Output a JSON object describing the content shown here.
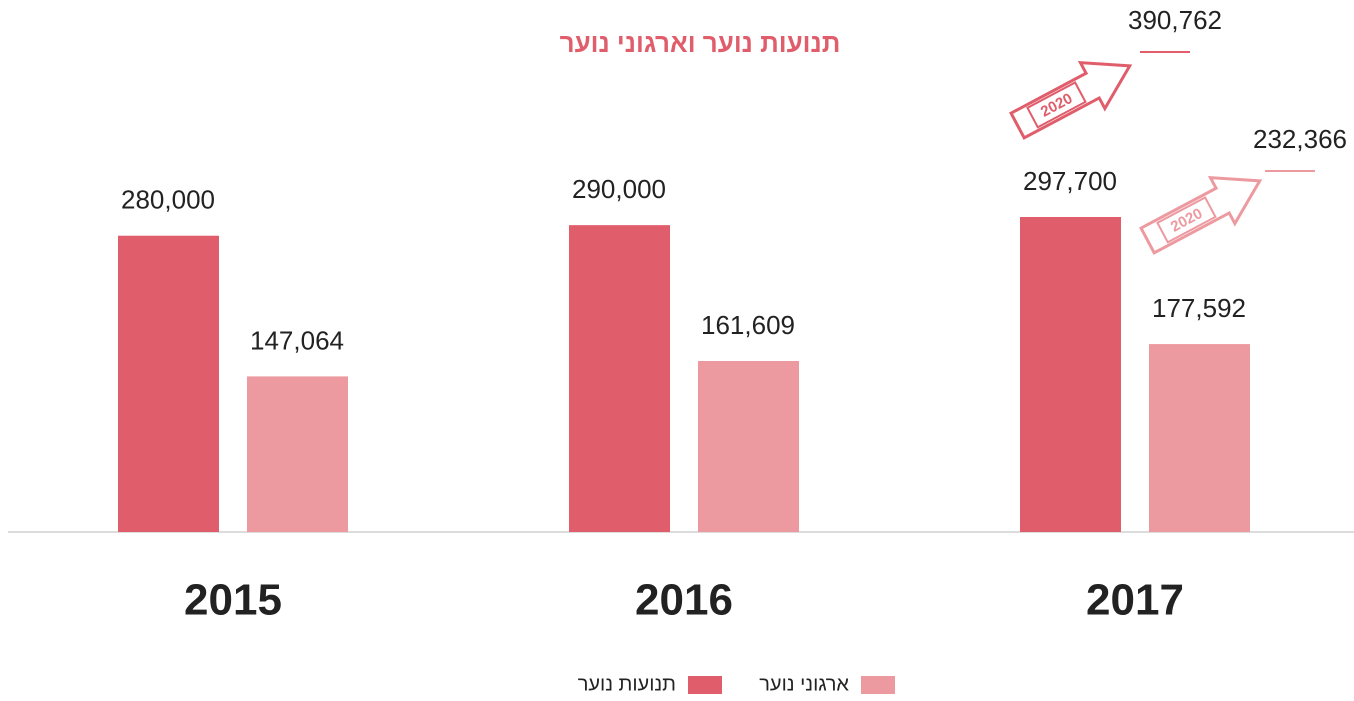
{
  "chart_data": {
    "type": "bar",
    "title": "תנועות נוער וארגוני נוער",
    "categories": [
      "2015",
      "2016",
      "2017"
    ],
    "series": [
      {
        "name": "תנועות נוער",
        "color": "#e05d6b",
        "values": [
          280000,
          290000,
          297700
        ],
        "value_labels": [
          "280,000",
          "290,000",
          "297,700"
        ]
      },
      {
        "name": "ארגוני נוער",
        "color": "#ec9aa0",
        "values": [
          147064,
          161609,
          177592
        ],
        "value_labels": [
          "147,064",
          "161,609",
          "177,592"
        ]
      }
    ],
    "annotations": [
      {
        "text": "2020",
        "series": 0,
        "value": 390762,
        "value_label": "390,762"
      },
      {
        "text": "2020",
        "series": 1,
        "value": 232366,
        "value_label": "232,366"
      }
    ]
  }
}
